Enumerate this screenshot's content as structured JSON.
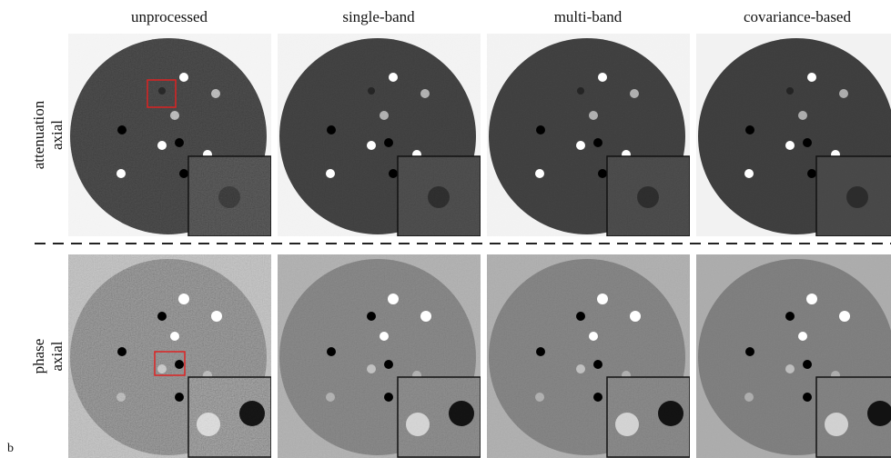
{
  "columns": [
    "unprocessed",
    "single-band",
    "multi-band",
    "covariance-based"
  ],
  "rows": [
    [
      "attenuation",
      "axial"
    ],
    [
      "phase",
      "axial"
    ]
  ],
  "panel_label": "b"
}
